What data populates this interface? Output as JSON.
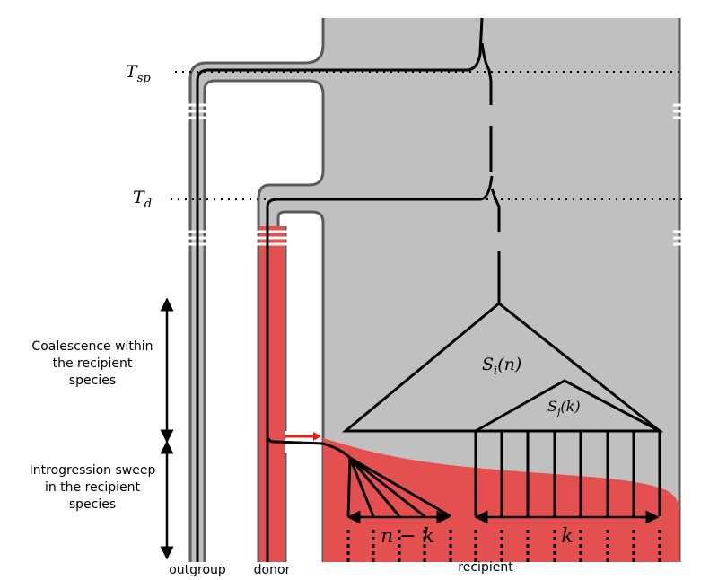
{
  "time_labels": {
    "t_sp": {
      "base": "T",
      "sub": "sp"
    },
    "t_d": {
      "base": "T",
      "sub": "d"
    }
  },
  "phase_labels": {
    "coalescence": [
      "Coalescence  within",
      "the recipient",
      "species"
    ],
    "introgression": [
      "Introgression sweep",
      "in the recipient",
      "species"
    ]
  },
  "subtree_labels": {
    "outer": {
      "base": "S",
      "sub": "i",
      "arg": "(n)"
    },
    "inner": {
      "base": "S",
      "sub": "j",
      "arg": "(k)"
    }
  },
  "count_labels": {
    "left": "n − k",
    "right": "k"
  },
  "species_labels": {
    "outgroup": "outgroup",
    "donor": "donor",
    "recipient": "recipient"
  },
  "colors": {
    "species_fill": "#c0c0c0",
    "species_border": "#5a5a5a",
    "introgression_fill": "#e45050",
    "migration_arrow": "#e02020",
    "lineage": "#000000"
  }
}
